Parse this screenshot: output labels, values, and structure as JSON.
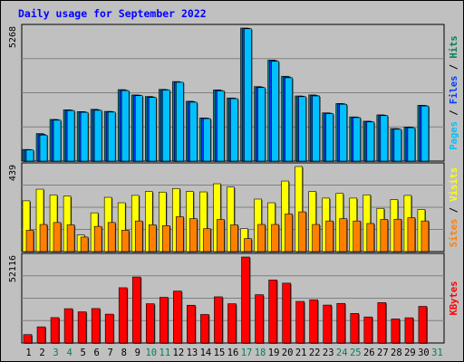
{
  "chart_data": {
    "type": "bar",
    "title": "Daily usage for September 2022",
    "categories": [
      "1",
      "2",
      "3",
      "4",
      "5",
      "6",
      "7",
      "8",
      "9",
      "10",
      "11",
      "12",
      "13",
      "14",
      "15",
      "16",
      "17",
      "18",
      "19",
      "20",
      "21",
      "22",
      "23",
      "24",
      "25",
      "26",
      "27",
      "28",
      "29",
      "30",
      "31"
    ],
    "weekend_days": [
      "3",
      "4",
      "10",
      "11",
      "17",
      "18",
      "24",
      "25",
      "31"
    ],
    "panels": [
      {
        "id": "pages-files-hits",
        "ymax_label": "5268",
        "ymax": 5268,
        "legend": [
          {
            "text": "Pages",
            "color": "#00c0ff"
          },
          {
            "text": " / ",
            "color": "#000000"
          },
          {
            "text": "Files",
            "color": "#0040ff"
          },
          {
            "text": " / ",
            "color": "#000000"
          },
          {
            "text": "Hits",
            "color": "#00805c"
          }
        ],
        "series": [
          {
            "name": "Hits",
            "color": "#008080",
            "values": [
              460,
              1090,
              1650,
              2030,
              1960,
              2050,
              1970,
              2830,
              2620,
              2560,
              2840,
              3150,
              2370,
              1710,
              2820,
              2500,
              5268,
              2950,
              4000,
              3360,
              2580,
              2620,
              1910,
              2280,
              1750,
              1580,
              1830,
              1290,
              1350,
              2210,
              0
            ]
          },
          {
            "name": "Files",
            "color": "#0040ff",
            "values": [
              450,
              1060,
              1640,
              2020,
              1950,
              2030,
              1960,
              2810,
              2610,
              2540,
              2830,
              3130,
              2350,
              1700,
              2800,
              2490,
              5260,
              2930,
              3980,
              3330,
              2570,
              2600,
              1900,
              2270,
              1740,
              1570,
              1820,
              1280,
              1340,
              2200,
              0
            ]
          },
          {
            "name": "Pages",
            "color": "#00c0ff",
            "values": [
              440,
              1030,
              1620,
              2000,
              1930,
              2010,
              1940,
              2790,
              2590,
              2520,
              2810,
              3120,
              2330,
              1680,
              2780,
              2470,
              5240,
              2910,
              3950,
              3300,
              2550,
              2580,
              1880,
              2250,
              1720,
              1550,
              1800,
              1260,
              1320,
              2180,
              0
            ]
          }
        ]
      },
      {
        "id": "visits-sites",
        "ymax_label": "439",
        "ymax": 439,
        "legend": [
          {
            "text": "Sites",
            "color": "#ff8000"
          },
          {
            "text": " / ",
            "color": "#000000"
          },
          {
            "text": "Visits",
            "color": "#ffff00"
          }
        ],
        "series": [
          {
            "name": "Visits",
            "color": "#ffff00",
            "values": [
              262,
              322,
              292,
              286,
              86,
              200,
              280,
              252,
              290,
              310,
              307,
              325,
              310,
              308,
              350,
              333,
              118,
              271,
              252,
              364,
              439,
              310,
              276,
              300,
              276,
              293,
              223,
              268,
              290,
              217,
              0
            ]
          },
          {
            "name": "Sites",
            "color": "#ff8000",
            "values": [
              110,
              140,
              150,
              138,
              75,
              130,
              150,
              110,
              158,
              138,
              134,
              180,
              170,
              118,
              166,
              138,
              67,
              140,
              140,
              194,
              205,
              140,
              158,
              170,
              158,
              145,
              166,
              167,
              175,
              158,
              0
            ]
          }
        ]
      },
      {
        "id": "kbytes",
        "ymax_label": "52116",
        "ymax": 52116,
        "legend": [
          {
            "text": "KBytes",
            "color": "#ff0000"
          }
        ],
        "series": [
          {
            "name": "KBytes",
            "color": "#ff0000",
            "values": [
              5100,
              9800,
              15400,
              20800,
              18900,
              20900,
              17500,
              33500,
              40000,
              23800,
              27700,
              31500,
              22900,
              17300,
              28000,
              23800,
              52116,
              29300,
              38200,
              36300,
              25200,
              26200,
              23000,
              24000,
              17900,
              15800,
              24500,
              14600,
              15300,
              22200,
              0
            ]
          }
        ]
      }
    ]
  }
}
